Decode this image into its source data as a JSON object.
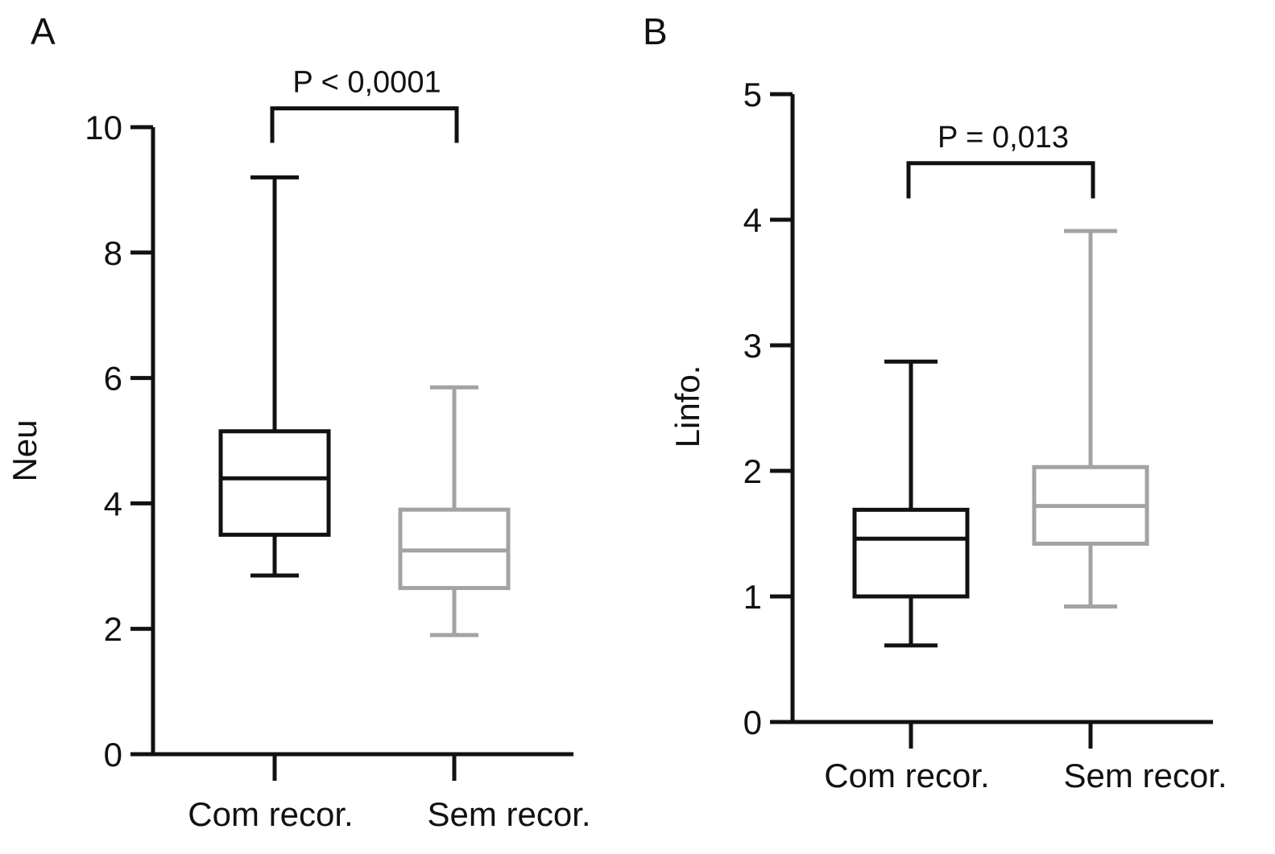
{
  "chart_data": [
    {
      "panel_label": "A",
      "type": "boxplot",
      "title": "",
      "xlabel": "",
      "ylabel": "Neu",
      "ylim": [
        0,
        10
      ],
      "yticks": [
        0,
        2,
        4,
        6,
        8,
        10
      ],
      "categories": [
        "Com recor.",
        "Sem recor."
      ],
      "boxes": [
        {
          "category": "Com recor.",
          "min": 2.85,
          "q1": 3.5,
          "median": 4.4,
          "q3": 5.15,
          "max": 9.2,
          "color": "#111111"
        },
        {
          "category": "Sem recor.",
          "min": 1.9,
          "q1": 2.65,
          "median": 3.25,
          "q3": 3.9,
          "max": 5.85,
          "color": "#a3a3a3"
        }
      ],
      "annotation": {
        "text": "P < 0,0001",
        "bracket_y": 10.3,
        "bracket_drop_y": 9.75
      }
    },
    {
      "panel_label": "B",
      "type": "boxplot",
      "title": "",
      "xlabel": "",
      "ylabel": "Linfo.",
      "ylim": [
        0,
        5
      ],
      "yticks": [
        0,
        1,
        2,
        3,
        4,
        5
      ],
      "categories": [
        "Com recor.",
        "Sem recor."
      ],
      "boxes": [
        {
          "category": "Com recor.",
          "min": 0.61,
          "q1": 1.0,
          "median": 1.46,
          "q3": 1.69,
          "max": 2.87,
          "color": "#111111"
        },
        {
          "category": "Sem recor.",
          "min": 0.92,
          "q1": 1.42,
          "median": 1.72,
          "q3": 2.03,
          "max": 3.91,
          "color": "#a3a3a3"
        }
      ],
      "annotation": {
        "text": "P = 0,013",
        "bracket_y": 4.45,
        "bracket_drop_y": 4.17
      }
    }
  ]
}
